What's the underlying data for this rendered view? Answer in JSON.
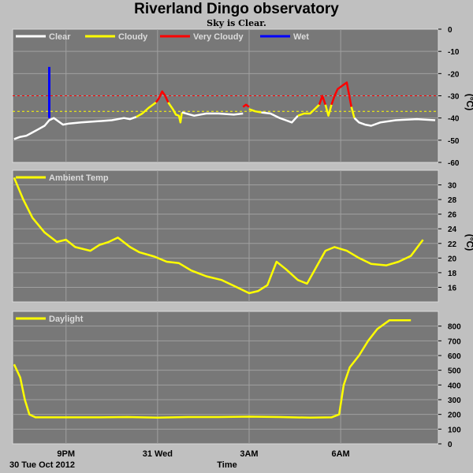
{
  "header": {
    "title": "Riverland Dingo observatory",
    "subtitle": "Sky is Clear."
  },
  "footer": {
    "date_label": "30 Tue Oct 2012",
    "xaxis_label": "Time"
  },
  "x_ticks": [
    {
      "label": "9PM",
      "hour": 21
    },
    {
      "label": "31 Wed",
      "hour": 24
    },
    {
      "label": "3AM",
      "hour": 27
    },
    {
      "label": "6AM",
      "hour": 30
    }
  ],
  "colors": {
    "panel_bg": "#787878",
    "grid": "#a0a0a0",
    "frame": "#c0c0c0",
    "clear": "#ffffff",
    "cloudy": "#ffff00",
    "very_cloudy": "#ff0000",
    "wet": "#0000ff",
    "daylight": "#ffff00",
    "ambient": "#ffff00"
  },
  "chart_data": [
    {
      "type": "line",
      "name": "cloud",
      "ylabel": "(°C)",
      "ylim": [
        -60,
        0
      ],
      "yticks": [
        0,
        -10,
        -20,
        -30,
        -40,
        -50,
        -60
      ],
      "xlim": [
        19.25,
        33.2
      ],
      "grid": true,
      "legend": [
        "Clear",
        "Cloudy",
        "Very Cloudy",
        "Wet"
      ],
      "thresholds": [
        {
          "value": -30,
          "color": "#ff0000"
        },
        {
          "value": -37,
          "color": "#ffff00"
        }
      ],
      "series": [
        {
          "name": "Clear",
          "color": "#ffffff",
          "points": [
            [
              19.3,
              -49.5
            ],
            [
              19.5,
              -48.5
            ],
            [
              19.7,
              -48
            ],
            [
              19.9,
              -46.5
            ],
            [
              20.1,
              -45
            ],
            [
              20.3,
              -43.5
            ],
            [
              20.45,
              -41
            ],
            [
              20.6,
              -40
            ],
            [
              20.7,
              -41
            ],
            [
              20.9,
              -43
            ],
            [
              21.1,
              -42.5
            ],
            [
              21.5,
              -42
            ],
            [
              22,
              -41.5
            ],
            [
              22.5,
              -41
            ],
            [
              22.9,
              -40
            ],
            [
              23.1,
              -40.5
            ],
            [
              23.3,
              -39.5
            ]
          ]
        },
        {
          "name": "Cloudy",
          "color": "#ffff00",
          "points": [
            [
              23.3,
              -39.5
            ],
            [
              23.5,
              -38
            ],
            [
              23.7,
              -35.5
            ],
            [
              23.85,
              -34
            ],
            [
              23.95,
              -33
            ]
          ]
        },
        {
          "name": "Very Cloudy",
          "color": "#ff0000",
          "points": [
            [
              23.95,
              -33
            ],
            [
              24.05,
              -31
            ],
            [
              24.15,
              -28
            ],
            [
              24.25,
              -30
            ],
            [
              24.35,
              -33
            ]
          ]
        },
        {
          "name": "Cloudy",
          "color": "#ffff00",
          "points": [
            [
              24.35,
              -33
            ],
            [
              24.5,
              -36
            ],
            [
              24.6,
              -38.5
            ],
            [
              24.7,
              -39
            ],
            [
              24.75,
              -42
            ],
            [
              24.8,
              -37.5
            ]
          ]
        },
        {
          "name": "Clear",
          "color": "#ffffff",
          "points": [
            [
              24.8,
              -37.5
            ],
            [
              25.2,
              -39
            ],
            [
              25.6,
              -38
            ],
            [
              26,
              -38
            ],
            [
              26.5,
              -38.5
            ],
            [
              26.8,
              -38
            ]
          ]
        },
        {
          "name": "Very Cloudy",
          "color": "#ff0000",
          "points": [
            [
              26.8,
              -35
            ],
            [
              26.9,
              -34
            ],
            [
              27.0,
              -35
            ]
          ]
        },
        {
          "name": "Cloudy",
          "color": "#ffff00",
          "points": [
            [
              27.0,
              -36
            ],
            [
              27.2,
              -37
            ],
            [
              27.4,
              -37.5
            ]
          ]
        },
        {
          "name": "Clear",
          "color": "#ffffff",
          "points": [
            [
              27.4,
              -37.5
            ],
            [
              27.7,
              -38
            ],
            [
              28,
              -40
            ],
            [
              28.2,
              -41
            ],
            [
              28.4,
              -42
            ],
            [
              28.6,
              -39
            ]
          ]
        },
        {
          "name": "Cloudy",
          "color": "#ffff00",
          "points": [
            [
              28.6,
              -39
            ],
            [
              28.8,
              -38
            ],
            [
              29.0,
              -38
            ],
            [
              29.3,
              -34
            ]
          ]
        },
        {
          "name": "Very Cloudy",
          "color": "#ff0000",
          "points": [
            [
              29.3,
              -34
            ],
            [
              29.4,
              -30
            ],
            [
              29.5,
              -34
            ]
          ]
        },
        {
          "name": "Cloudy",
          "color": "#ffff00",
          "points": [
            [
              29.5,
              -34
            ],
            [
              29.6,
              -39
            ],
            [
              29.7,
              -34
            ]
          ]
        },
        {
          "name": "Very Cloudy",
          "color": "#ff0000",
          "points": [
            [
              29.7,
              -34
            ],
            [
              29.8,
              -30
            ],
            [
              29.9,
              -27
            ],
            [
              30.1,
              -25
            ],
            [
              30.2,
              -24
            ],
            [
              30.35,
              -35
            ]
          ]
        },
        {
          "name": "Cloudy",
          "color": "#ffff00",
          "points": [
            [
              30.35,
              -35
            ],
            [
              30.45,
              -40
            ]
          ]
        },
        {
          "name": "Clear",
          "color": "#ffffff",
          "points": [
            [
              30.45,
              -40
            ],
            [
              30.6,
              -42
            ],
            [
              30.8,
              -43
            ],
            [
              31,
              -43.5
            ],
            [
              31.3,
              -42
            ],
            [
              31.8,
              -41
            ],
            [
              32.5,
              -40.5
            ],
            [
              33.1,
              -41
            ]
          ]
        },
        {
          "name": "Wet",
          "color": "#0000ff",
          "points": [
            [
              20.45,
              -40
            ],
            [
              20.45,
              -17
            ]
          ]
        }
      ]
    },
    {
      "type": "line",
      "name": "ambient",
      "ylabel": "(°C)",
      "ylim": [
        14,
        32
      ],
      "yticks": [
        16,
        18,
        20,
        22,
        24,
        26,
        28,
        30
      ],
      "xlim": [
        19.25,
        33.2
      ],
      "grid": true,
      "legend": [
        "Ambient Temp"
      ],
      "series": [
        {
          "name": "Ambient Temp",
          "color": "#ffff00",
          "points": [
            [
              19.3,
              31
            ],
            [
              19.6,
              28
            ],
            [
              19.9,
              25.5
            ],
            [
              20.3,
              23.5
            ],
            [
              20.7,
              22.2
            ],
            [
              21.0,
              22.5
            ],
            [
              21.3,
              21.5
            ],
            [
              21.8,
              21
            ],
            [
              22.1,
              21.8
            ],
            [
              22.4,
              22.2
            ],
            [
              22.7,
              22.8
            ],
            [
              23.1,
              21.5
            ],
            [
              23.4,
              20.8
            ],
            [
              23.9,
              20.2
            ],
            [
              24.3,
              19.5
            ],
            [
              24.7,
              19.3
            ],
            [
              25.1,
              18.3
            ],
            [
              25.6,
              17.5
            ],
            [
              26.1,
              17
            ],
            [
              26.6,
              16
            ],
            [
              27.0,
              15.2
            ],
            [
              27.3,
              15.5
            ],
            [
              27.6,
              16.3
            ],
            [
              27.9,
              19.5
            ],
            [
              28.2,
              18.5
            ],
            [
              28.6,
              17
            ],
            [
              28.9,
              16.5
            ],
            [
              29.3,
              19.5
            ],
            [
              29.5,
              21
            ],
            [
              29.8,
              21.5
            ],
            [
              30.2,
              21
            ],
            [
              30.6,
              20
            ],
            [
              31,
              19.2
            ],
            [
              31.5,
              19
            ],
            [
              31.9,
              19.5
            ],
            [
              32.3,
              20.3
            ],
            [
              32.7,
              22.5
            ]
          ]
        }
      ]
    },
    {
      "type": "line",
      "name": "daylight",
      "ylabel": "",
      "ylim": [
        0,
        900
      ],
      "yticks": [
        0,
        100,
        200,
        300,
        400,
        500,
        600,
        700,
        800
      ],
      "xlim": [
        19.25,
        33.2
      ],
      "grid": true,
      "legend": [
        "Daylight"
      ],
      "series": [
        {
          "name": "Daylight",
          "color": "#ffff00",
          "points": [
            [
              19.3,
              540
            ],
            [
              19.5,
              450
            ],
            [
              19.65,
              300
            ],
            [
              19.8,
              200
            ],
            [
              20.0,
              180
            ],
            [
              21,
              180
            ],
            [
              22,
              180
            ],
            [
              23,
              182
            ],
            [
              24,
              178
            ],
            [
              25,
              182
            ],
            [
              26,
              182
            ],
            [
              27,
              185
            ],
            [
              28,
              182
            ],
            [
              29,
              178
            ],
            [
              29.7,
              180
            ],
            [
              29.95,
              200
            ],
            [
              30.1,
              400
            ],
            [
              30.3,
              520
            ],
            [
              30.6,
              600
            ],
            [
              30.9,
              700
            ],
            [
              31.2,
              780
            ],
            [
              31.6,
              840
            ],
            [
              32,
              840
            ],
            [
              32.3,
              840
            ]
          ]
        }
      ]
    }
  ]
}
